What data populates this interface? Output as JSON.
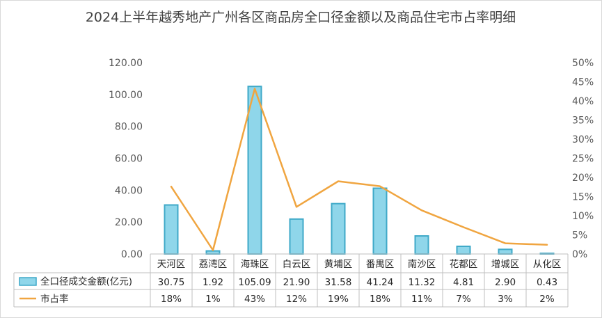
{
  "chart_data": {
    "type": "bar",
    "title": "2024上半年越秀地产广州各区商品房全口径金额以及商品住宅市占率明细",
    "categories": [
      "天河区",
      "荔湾区",
      "海珠区",
      "白云区",
      "黄埔区",
      "番禺区",
      "南沙区",
      "花都区",
      "增城区",
      "从化区"
    ],
    "series": [
      {
        "name": "全口径成交金额(亿元)",
        "type": "bar",
        "axis": "left",
        "color": "#8fd6ea",
        "edge_color": "#3fa9c8",
        "values": [
          30.75,
          1.92,
          105.09,
          21.9,
          31.58,
          41.24,
          11.32,
          4.81,
          2.9,
          0.43
        ],
        "labels": [
          "30.75",
          "1.92",
          "105.09",
          "21.90",
          "31.58",
          "41.24",
          "11.32",
          "4.81",
          "2.90",
          "0.43"
        ]
      },
      {
        "name": "市占率",
        "type": "line",
        "axis": "right",
        "color": "#f0a540",
        "values": [
          17.6,
          1.0,
          43.2,
          12.3,
          19.0,
          17.7,
          11.4,
          7.0,
          2.8,
          2.4
        ],
        "labels": [
          "18%",
          "1%",
          "43%",
          "12%",
          "19%",
          "18%",
          "11%",
          "7%",
          "3%",
          "2%"
        ]
      }
    ],
    "y_left": {
      "min": 0,
      "max": 120,
      "ticks": [
        "0.00",
        "20.00",
        "40.00",
        "60.00",
        "80.00",
        "100.00",
        "120.00"
      ]
    },
    "y_right": {
      "min": 0,
      "max": 50,
      "ticks": [
        "0%",
        "5%",
        "10%",
        "15%",
        "20%",
        "25%",
        "30%",
        "35%",
        "40%",
        "45%",
        "50%"
      ]
    },
    "grid": false,
    "legend": "data-table"
  }
}
